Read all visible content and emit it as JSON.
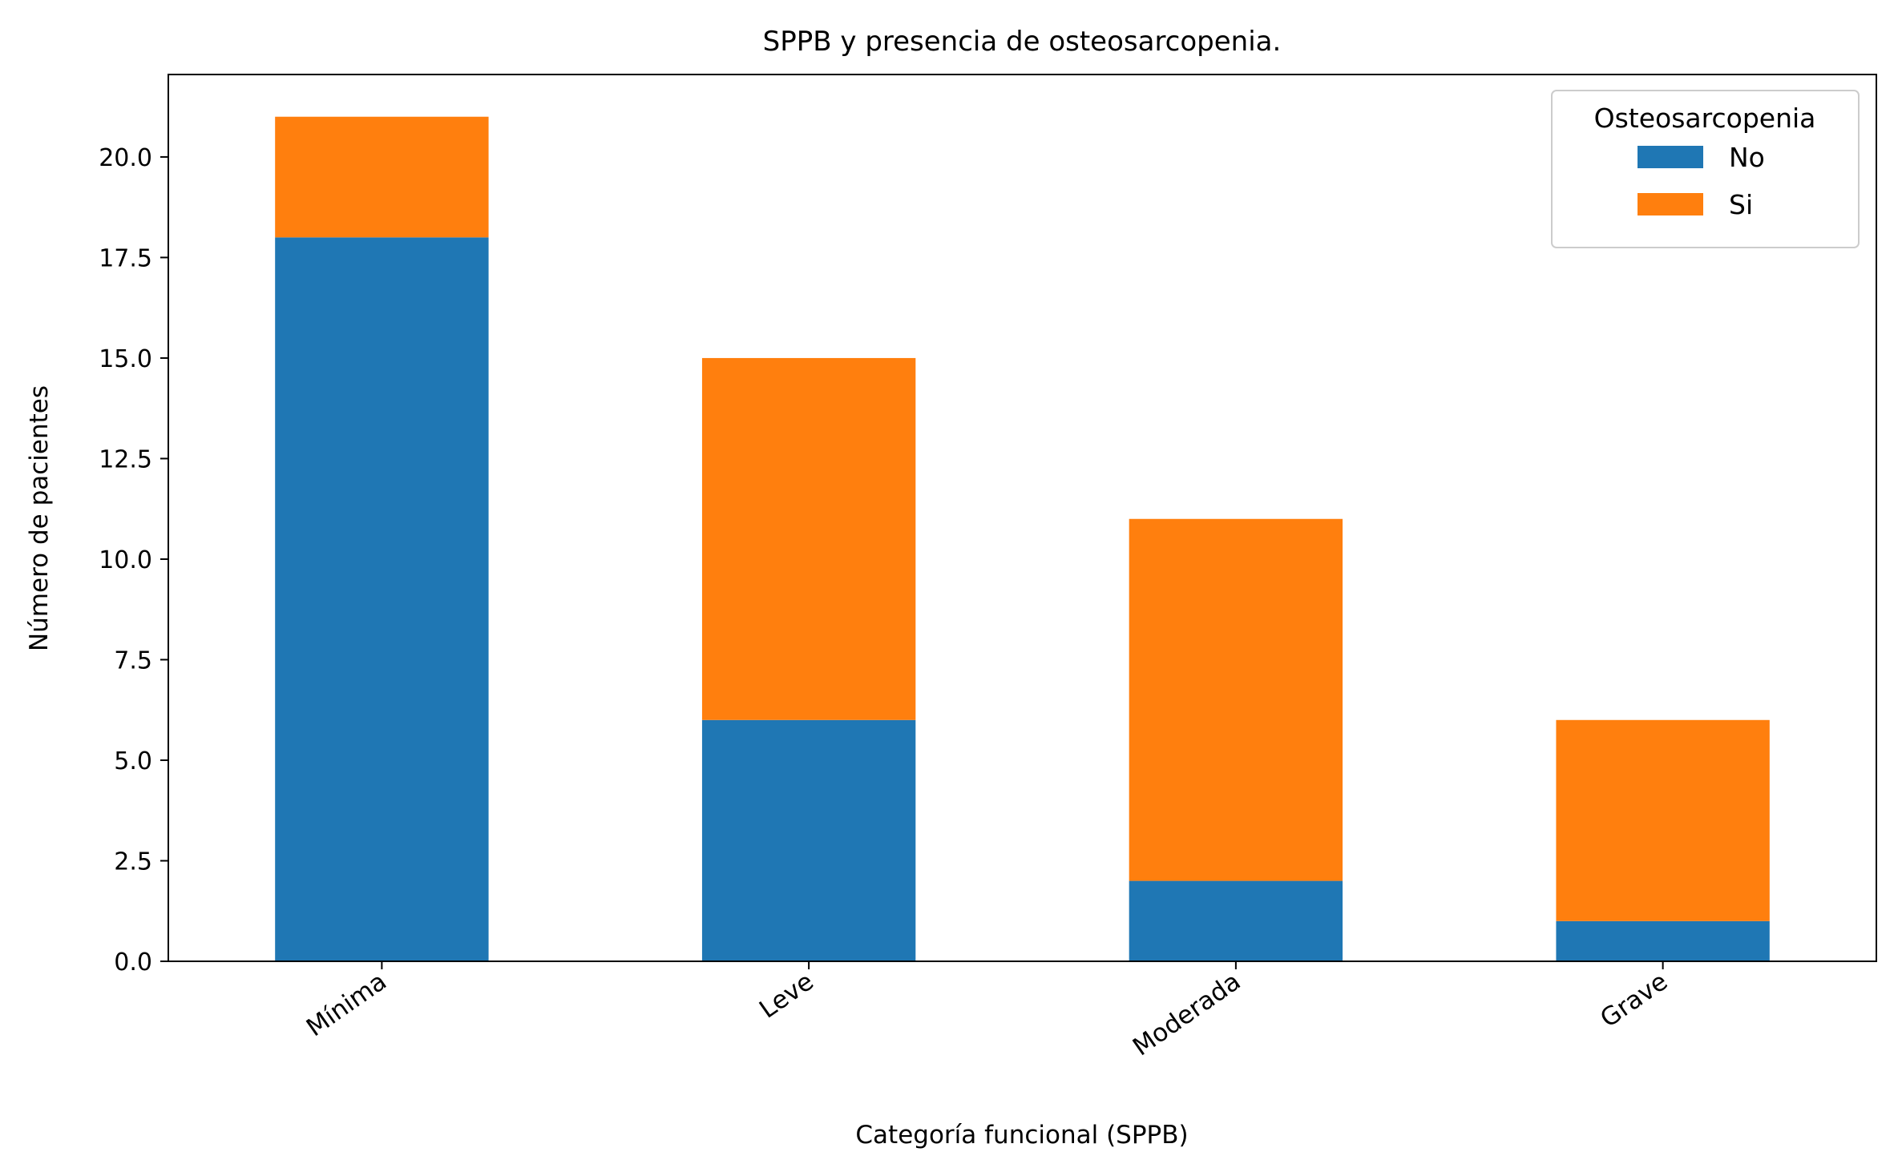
{
  "chart_data": {
    "type": "bar",
    "stacked": true,
    "title": "SPPB y presencia de osteosarcopenia.",
    "xlabel": "Categoría funcional (SPPB)",
    "ylabel": "Número de pacientes",
    "categories": [
      "Mínima",
      "Leve",
      "Moderada",
      "Grave"
    ],
    "series": [
      {
        "name": "No",
        "values": [
          18,
          6,
          2,
          1
        ],
        "color": "#1f77b4"
      },
      {
        "name": "Si",
        "values": [
          3,
          9,
          9,
          5
        ],
        "color": "#ff7f0e"
      }
    ],
    "ylim": [
      0,
      22.05
    ],
    "yticks": [
      "0.0",
      "2.5",
      "5.0",
      "7.5",
      "10.0",
      "12.5",
      "15.0",
      "17.5",
      "20.0"
    ],
    "legend": {
      "title": "Osteosarcopenia",
      "position": "top-right"
    },
    "grid": false
  }
}
